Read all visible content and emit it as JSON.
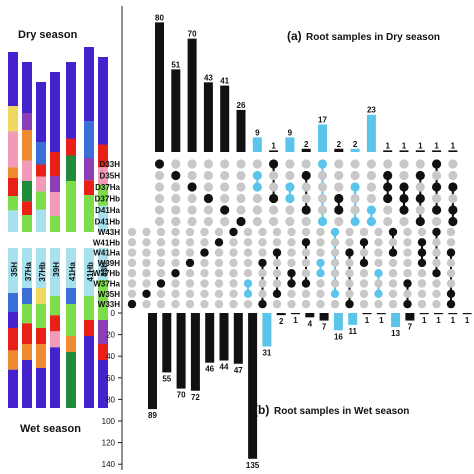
{
  "chart_data": [
    {
      "type": "bar",
      "panel": "(a)",
      "title": "Root samples in Dry season",
      "values": [
        80,
        51,
        70,
        43,
        41,
        26,
        9,
        1,
        9,
        2,
        17,
        2,
        2,
        23,
        1,
        1,
        1,
        1,
        1
      ],
      "value_labels": [
        "80",
        "51",
        "70",
        "43",
        "41",
        "26",
        "9",
        "1",
        "9",
        "2",
        "17",
        "2",
        "2",
        "23",
        "1",
        "1",
        "1",
        "1",
        "1"
      ],
      "highlighted_bars": [
        6,
        8,
        10,
        12,
        13
      ],
      "ylim": [
        0,
        80
      ]
    },
    {
      "type": "bar",
      "panel": "(b)",
      "title": "Root samples in Wet season",
      "orientation": "downward",
      "values": [
        89,
        55,
        70,
        72,
        46,
        44,
        47,
        135,
        31,
        2,
        1,
        4,
        7,
        16,
        11,
        1,
        1,
        13,
        7,
        1,
        1,
        1,
        1
      ],
      "value_labels": [
        "89",
        "55",
        "70",
        "72",
        "46",
        "44",
        "47",
        "135",
        "31",
        "2",
        "1",
        "4",
        "7",
        "16",
        "11",
        "1",
        "1",
        "13",
        "7",
        "1",
        "1",
        "1",
        "1"
      ],
      "highlighted_bars": [
        8,
        13,
        14,
        17
      ],
      "ylim": [
        0,
        140
      ],
      "yticks": [
        0,
        20,
        40,
        60,
        80,
        100,
        120,
        140
      ],
      "ytick_labels": [
        "0",
        "20",
        "40",
        "60",
        "80",
        "100",
        "120",
        "140"
      ]
    }
  ],
  "dry_sets": [
    "D33H",
    "D35H",
    "D37Ha",
    "D37Hb",
    "D41Ha",
    "D41Hb"
  ],
  "wet_sets": [
    "W43H",
    "W41Hb",
    "W41Ha",
    "W39H",
    "W37Hb",
    "W37Ha",
    "W35H",
    "W33H"
  ],
  "left_panel": {
    "dry_label": "Dry season",
    "wet_label": "Wet season",
    "sample_labels": [
      "35H",
      "37Ha",
      "37Hb",
      "39H",
      "41Ha",
      "41Hb",
      "43H"
    ]
  },
  "colors": {
    "bar": "#111111",
    "highlight": "#5bc4ea",
    "dot_off": "#c8c8c8",
    "dot_on": "#111111"
  }
}
